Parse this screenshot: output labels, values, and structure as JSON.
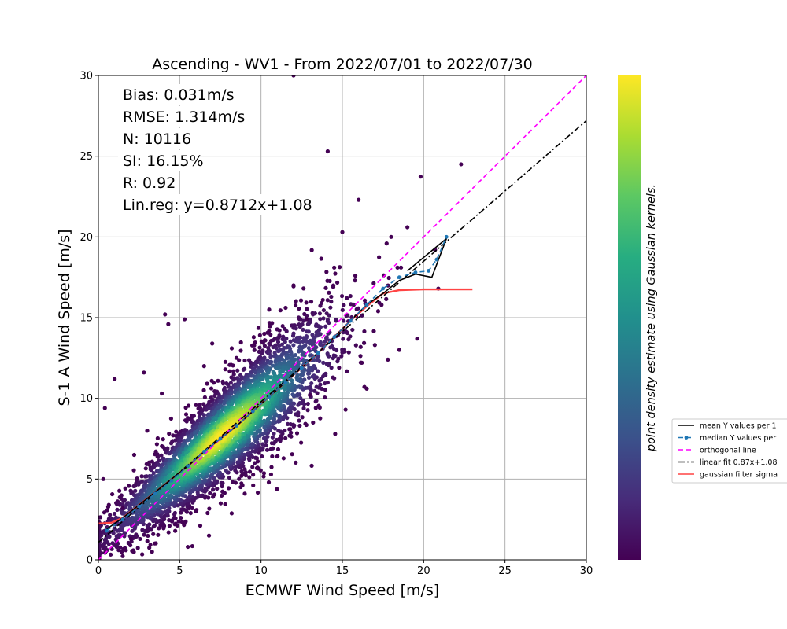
{
  "chart_data": {
    "type": "scatter",
    "title": "Ascending - WV1 - From 2022/07/01 to 2022/07/30",
    "xlabel": "ECMWF Wind Speed [m/s]",
    "ylabel": "S-1 A Wind Speed [m/s]",
    "xlim": [
      0,
      30
    ],
    "ylim": [
      0,
      30
    ],
    "xticks": [
      "0",
      "5",
      "10",
      "15",
      "20",
      "25",
      "30"
    ],
    "yticks": [
      "0",
      "5",
      "10",
      "15",
      "20",
      "25",
      "30"
    ],
    "grid": true,
    "stats": [
      "Bias: 0.031m/s",
      "RMSE: 1.314m/s",
      "N: 10116",
      "SI: 16.15%",
      "R: 0.92",
      "Lin.reg: y=0.8712x+1.08"
    ],
    "colorbar_label": "point density estimate using Gaussian kernels.",
    "colormap": "viridis",
    "legend_position": "right, outside plot",
    "legend": [
      {
        "label": "mean Y values per 1",
        "style": "solid",
        "color": "#000000",
        "marker": false
      },
      {
        "label": "median Y values per",
        "style": "dashed",
        "color": "#1f77b4",
        "marker": true
      },
      {
        "label": "orthogonal line",
        "style": "dashed",
        "color": "#ff00ff",
        "marker": false
      },
      {
        "label": "linear fit 0.87x+1.08",
        "style": "dashdot",
        "color": "#000000",
        "marker": false
      },
      {
        "label": "gaussian filter sigma",
        "style": "solid",
        "color": "#ff4444",
        "marker": false
      }
    ],
    "series": [
      {
        "name": "mean Y values per 1",
        "x": [
          0.5,
          1.5,
          2.5,
          3.5,
          4.5,
          5.5,
          6.5,
          7.5,
          8.5,
          9.5,
          10.5,
          11.5,
          12.5,
          13.5,
          14.5,
          15.5,
          16.5,
          17.5,
          18.5,
          19.5,
          20.5,
          21.4,
          19.0
        ],
        "y": [
          1.9,
          2.6,
          3.4,
          4.2,
          5.0,
          5.8,
          6.7,
          7.5,
          8.3,
          9.2,
          10.1,
          11.0,
          11.9,
          12.8,
          13.8,
          14.8,
          15.8,
          16.5,
          17.3,
          17.7,
          17.5,
          19.9,
          17.9
        ]
      },
      {
        "name": "median Y values per",
        "x": [
          0.5,
          1.5,
          2.5,
          3.5,
          4.5,
          5.5,
          6.5,
          7.5,
          8.5,
          9.5,
          10.5,
          11.5,
          12.5,
          13.5,
          14.5,
          15.5,
          16.5,
          17.5,
          18.5,
          19.5,
          20.3,
          20.8,
          21.4
        ],
        "y": [
          1.8,
          2.5,
          3.3,
          4.1,
          4.9,
          5.8,
          6.7,
          7.5,
          8.3,
          9.2,
          10.1,
          11.0,
          11.9,
          12.8,
          13.8,
          14.8,
          15.8,
          16.8,
          17.5,
          17.8,
          17.9,
          18.6,
          20.0
        ]
      },
      {
        "name": "orthogonal line",
        "x": [
          0,
          30
        ],
        "y": [
          0,
          30
        ]
      },
      {
        "name": "linear fit 0.87x+1.08",
        "x": [
          0,
          30
        ],
        "y": [
          1.08,
          27.2
        ]
      },
      {
        "name": "gaussian filter sigma",
        "x": [
          0,
          0.8,
          1.5,
          2.5,
          3.5,
          4.5,
          5.5,
          6.5,
          7.5,
          8.5,
          9.5,
          10.5,
          11.5,
          12.5,
          13.5,
          14.5,
          15.5,
          16.5,
          17.0,
          17.5,
          18.5,
          20.0,
          21.5,
          23.0
        ],
        "y": [
          2.25,
          2.3,
          2.6,
          3.4,
          4.2,
          5.0,
          5.8,
          6.7,
          7.5,
          8.3,
          9.2,
          10.1,
          11.0,
          11.9,
          12.8,
          13.8,
          14.8,
          15.7,
          16.1,
          16.5,
          16.7,
          16.75,
          16.75,
          16.75
        ]
      }
    ],
    "outlier_points": {
      "x": [
        12.0,
        14.1,
        19.0,
        22.3,
        16.0,
        18.0,
        20.7,
        15.0,
        4.1,
        5.3,
        4.3,
        1.0,
        0.4,
        0.3,
        2.8,
        3.9,
        7.0,
        8.2,
        10.2,
        12.8,
        13.8,
        9.0,
        6.8,
        5.5,
        3.3,
        2.0,
        11.0,
        13.2,
        15.2,
        16.5,
        17.8,
        18.5,
        19.6,
        15.8,
        14.5,
        12.0,
        20.9,
        17.2,
        11.8,
        6.0,
        8.8,
        9.8,
        3.0,
        2.2,
        1.5,
        6.5,
        7.8,
        10.5,
        13.0,
        14.8
      ],
      "y": [
        30.0,
        25.3,
        20.6,
        24.5,
        22.3,
        20.0,
        19.2,
        20.3,
        15.2,
        14.9,
        14.6,
        11.2,
        9.4,
        5.0,
        11.6,
        10.3,
        13.4,
        13.1,
        14.0,
        14.9,
        16.1,
        4.1,
        1.5,
        0.8,
        0.5,
        1.3,
        6.4,
        8.5,
        9.3,
        10.6,
        12.4,
        13.0,
        13.7,
        17.6,
        18.1,
        17.0,
        16.8,
        15.4,
        8.1,
        3.0,
        5.2,
        6.1,
        8.0,
        6.5,
        3.2,
        12.0,
        11.8,
        15.5,
        10.2,
        11.9
      ]
    }
  }
}
